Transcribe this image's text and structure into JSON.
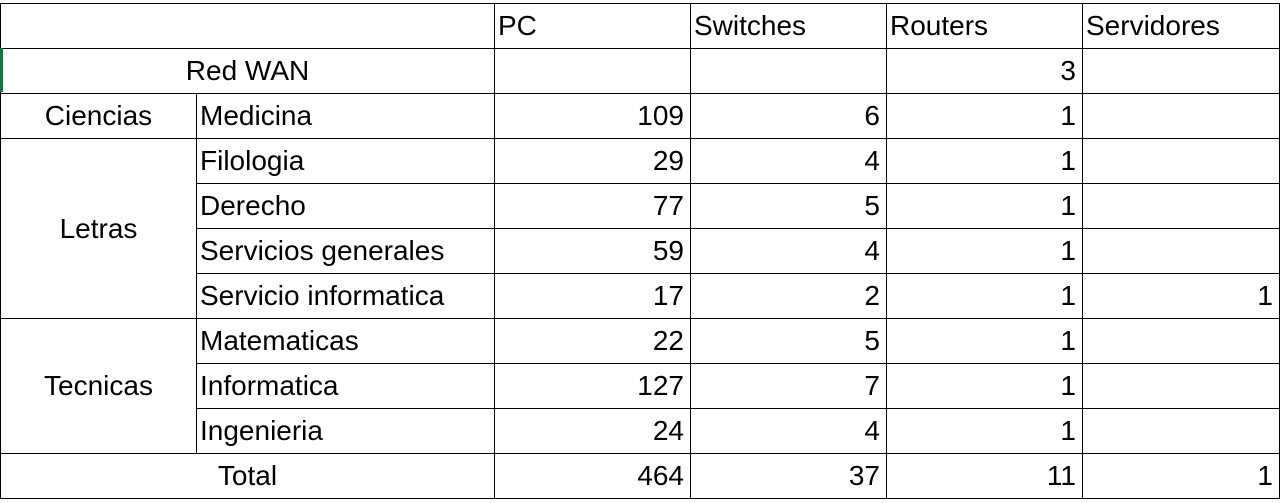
{
  "headers": [
    "PC",
    "Switches",
    "Routers",
    "Servidores"
  ],
  "wan": {
    "label": "Red WAN",
    "pc": "",
    "switches": "",
    "routers": "3",
    "servidores": ""
  },
  "groups": {
    "ciencias": "Ciencias",
    "letras": "Letras",
    "tecnicas": "Tecnicas"
  },
  "rows": [
    {
      "name": "Medicina",
      "pc": "109",
      "switches": "6",
      "routers": "1",
      "servidores": ""
    },
    {
      "name": "Filologia",
      "pc": "29",
      "switches": "4",
      "routers": "1",
      "servidores": ""
    },
    {
      "name": "Derecho",
      "pc": "77",
      "switches": "5",
      "routers": "1",
      "servidores": ""
    },
    {
      "name": "Servicios generales",
      "pc": "59",
      "switches": "4",
      "routers": "1",
      "servidores": ""
    },
    {
      "name": "Servicio informatica",
      "pc": "17",
      "switches": "2",
      "routers": "1",
      "servidores": "1"
    },
    {
      "name": "Matematicas",
      "pc": "22",
      "switches": "5",
      "routers": "1",
      "servidores": ""
    },
    {
      "name": "Informatica",
      "pc": "127",
      "switches": "7",
      "routers": "1",
      "servidores": ""
    },
    {
      "name": "Ingenieria",
      "pc": "24",
      "switches": "4",
      "routers": "1",
      "servidores": ""
    }
  ],
  "total": {
    "label": "Total",
    "pc": "464",
    "switches": "37",
    "routers": "11",
    "servidores": "1"
  }
}
